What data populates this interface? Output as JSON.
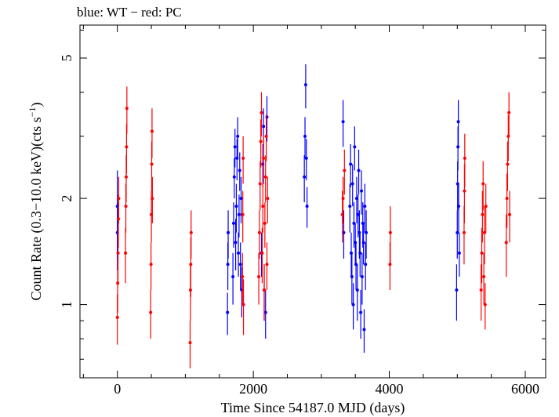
{
  "chart_data": {
    "type": "scatter",
    "title": "blue: WT − red: PC",
    "xlabel": "Time Since 54187.0 MJD (days)",
    "ylabel_parts": [
      "Count Rate (0.3−10.0 keV)(cts s",
      "−1",
      ")"
    ],
    "y_scale": "log",
    "xlim": [
      -550,
      6300
    ],
    "ylim": [
      0.62,
      6.2
    ],
    "x_ticks": [
      0,
      2000,
      4000,
      6000
    ],
    "x_tick_labels": [
      "0",
      "2000",
      "4000",
      "6000"
    ],
    "y_ticks": [
      1,
      2,
      5
    ],
    "y_tick_labels": [
      "1",
      "2",
      "5"
    ],
    "legend": "none",
    "grid": false,
    "colors": {
      "WT": "#0000ff",
      "PC": "#ff0000"
    },
    "series": [
      {
        "name": "WT",
        "color": "#0000ff",
        "points": [
          [
            0,
            1.6,
            0.35
          ],
          [
            0,
            1.9,
            0.5
          ],
          [
            1620,
            0.95,
            0.13
          ],
          [
            1625,
            1.3,
            0.2
          ],
          [
            1630,
            1.6,
            0.25
          ],
          [
            1700,
            1.2,
            0.2
          ],
          [
            1710,
            1.7,
            0.25
          ],
          [
            1720,
            2.3,
            0.3
          ],
          [
            1730,
            2.8,
            0.35
          ],
          [
            1740,
            1.5,
            0.25
          ],
          [
            1750,
            1.9,
            0.3
          ],
          [
            1760,
            2.6,
            0.35
          ],
          [
            1770,
            3.0,
            0.4
          ],
          [
            1780,
            1.4,
            0.2
          ],
          [
            1790,
            1.8,
            0.25
          ],
          [
            1800,
            2.4,
            0.3
          ],
          [
            1810,
            1.3,
            0.2
          ],
          [
            1820,
            2.0,
            0.3
          ],
          [
            1830,
            1.1,
            0.18
          ],
          [
            2120,
            1.4,
            0.2
          ],
          [
            2140,
            2.5,
            0.35
          ],
          [
            2150,
            3.2,
            0.4
          ],
          [
            2160,
            1.1,
            0.2
          ],
          [
            2180,
            0.95,
            0.15
          ],
          [
            2200,
            3.4,
            0.5
          ],
          [
            2750,
            2.3,
            0.35
          ],
          [
            2760,
            3.0,
            0.4
          ],
          [
            2770,
            4.2,
            0.6
          ],
          [
            2780,
            2.6,
            0.35
          ],
          [
            2790,
            1.9,
            0.25
          ],
          [
            3320,
            3.3,
            0.5
          ],
          [
            3330,
            1.6,
            0.25
          ],
          [
            3420,
            1.9,
            0.3
          ],
          [
            3430,
            2.5,
            0.35
          ],
          [
            3440,
            1.4,
            0.2
          ],
          [
            3450,
            1.2,
            0.2
          ],
          [
            3460,
            2.2,
            0.3
          ],
          [
            3470,
            1.0,
            0.15
          ],
          [
            3480,
            1.7,
            0.25
          ],
          [
            3490,
            2.8,
            0.4
          ],
          [
            3500,
            1.5,
            0.2
          ],
          [
            3510,
            1.3,
            0.2
          ],
          [
            3520,
            2.0,
            0.3
          ],
          [
            3530,
            1.1,
            0.2
          ],
          [
            3540,
            1.8,
            0.25
          ],
          [
            3550,
            2.4,
            0.35
          ],
          [
            3560,
            1.6,
            0.25
          ],
          [
            3570,
            1.4,
            0.2
          ],
          [
            3580,
            0.95,
            0.15
          ],
          [
            3590,
            2.1,
            0.3
          ],
          [
            3600,
            1.2,
            0.2
          ],
          [
            3610,
            1.7,
            0.25
          ],
          [
            3620,
            1.5,
            0.2
          ],
          [
            3630,
            0.85,
            0.12
          ],
          [
            3640,
            1.9,
            0.3
          ],
          [
            3650,
            1.3,
            0.2
          ],
          [
            3660,
            1.6,
            0.25
          ],
          [
            4990,
            1.1,
            0.2
          ],
          [
            5000,
            1.6,
            0.25
          ],
          [
            5005,
            2.2,
            0.35
          ],
          [
            5010,
            2.8,
            0.4
          ],
          [
            5015,
            3.3,
            0.5
          ],
          [
            5020,
            1.9,
            0.3
          ],
          [
            5030,
            1.4,
            0.2
          ]
        ]
      },
      {
        "name": "PC",
        "color": "#ff0000",
        "points": [
          [
            0,
            0.92,
            0.15
          ],
          [
            5,
            1.15,
            0.2
          ],
          [
            10,
            1.4,
            0.25
          ],
          [
            15,
            1.75,
            0.3
          ],
          [
            20,
            2.0,
            0.3
          ],
          [
            120,
            1.4,
            0.25
          ],
          [
            125,
            1.9,
            0.3
          ],
          [
            130,
            2.3,
            0.35
          ],
          [
            135,
            2.8,
            0.45
          ],
          [
            140,
            3.6,
            0.55
          ],
          [
            490,
            0.95,
            0.15
          ],
          [
            495,
            1.3,
            0.2
          ],
          [
            500,
            1.8,
            0.3
          ],
          [
            505,
            2.5,
            0.4
          ],
          [
            510,
            3.1,
            0.5
          ],
          [
            515,
            2.0,
            0.3
          ],
          [
            1070,
            0.78,
            0.12
          ],
          [
            1075,
            1.1,
            0.2
          ],
          [
            1080,
            1.3,
            0.25
          ],
          [
            1085,
            1.6,
            0.25
          ],
          [
            1840,
            1.2,
            0.2
          ],
          [
            1845,
            1.8,
            0.3
          ],
          [
            1850,
            2.6,
            0.4
          ],
          [
            1855,
            1.0,
            0.18
          ],
          [
            2080,
            1.2,
            0.2
          ],
          [
            2090,
            1.6,
            0.25
          ],
          [
            2100,
            2.2,
            0.35
          ],
          [
            2110,
            2.9,
            0.45
          ],
          [
            2120,
            3.5,
            0.5
          ],
          [
            2130,
            1.4,
            0.25
          ],
          [
            2140,
            1.9,
            0.3
          ],
          [
            2150,
            2.6,
            0.4
          ],
          [
            2160,
            1.1,
            0.2
          ],
          [
            2170,
            1.7,
            0.25
          ],
          [
            2180,
            2.3,
            0.35
          ],
          [
            2190,
            3.0,
            0.45
          ],
          [
            2200,
            1.3,
            0.2
          ],
          [
            2210,
            2.0,
            0.3
          ],
          [
            3310,
            1.8,
            0.3
          ],
          [
            3320,
            2.0,
            0.3
          ],
          [
            3340,
            2.4,
            0.35
          ],
          [
            4010,
            1.3,
            0.2
          ],
          [
            4015,
            1.6,
            0.3
          ],
          [
            5100,
            1.6,
            0.3
          ],
          [
            5105,
            2.1,
            0.4
          ],
          [
            5110,
            2.6,
            0.45
          ],
          [
            5350,
            1.1,
            0.2
          ],
          [
            5360,
            1.4,
            0.25
          ],
          [
            5370,
            1.8,
            0.3
          ],
          [
            5380,
            2.2,
            0.35
          ],
          [
            5390,
            1.2,
            0.2
          ],
          [
            5400,
            1.6,
            0.3
          ],
          [
            5410,
            1.0,
            0.15
          ],
          [
            5420,
            1.9,
            0.3
          ],
          [
            5720,
            1.5,
            0.3
          ],
          [
            5730,
            2.0,
            0.35
          ],
          [
            5740,
            2.5,
            0.4
          ],
          [
            5750,
            3.0,
            0.45
          ],
          [
            5760,
            3.5,
            0.5
          ],
          [
            5770,
            1.8,
            0.3
          ]
        ]
      }
    ]
  }
}
